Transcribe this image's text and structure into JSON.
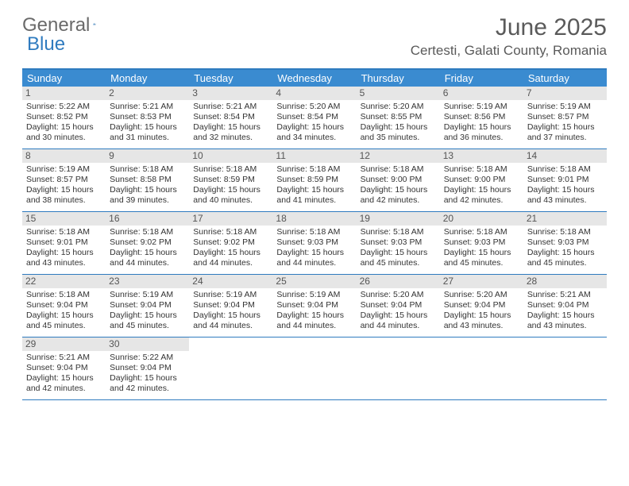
{
  "logo": {
    "text1": "General",
    "text2": "Blue"
  },
  "title": "June 2025",
  "location": "Certesti, Galati County, Romania",
  "colors": {
    "header_bar": "#3a8bd0",
    "border": "#2f7bbf",
    "daynum_bg": "#e6e6e6",
    "text": "#5a5a5a"
  },
  "dow": [
    "Sunday",
    "Monday",
    "Tuesday",
    "Wednesday",
    "Thursday",
    "Friday",
    "Saturday"
  ],
  "weeks": [
    [
      {
        "n": "1",
        "sr": "5:22 AM",
        "ss": "8:52 PM",
        "dl": "15 hours and 30 minutes."
      },
      {
        "n": "2",
        "sr": "5:21 AM",
        "ss": "8:53 PM",
        "dl": "15 hours and 31 minutes."
      },
      {
        "n": "3",
        "sr": "5:21 AM",
        "ss": "8:54 PM",
        "dl": "15 hours and 32 minutes."
      },
      {
        "n": "4",
        "sr": "5:20 AM",
        "ss": "8:54 PM",
        "dl": "15 hours and 34 minutes."
      },
      {
        "n": "5",
        "sr": "5:20 AM",
        "ss": "8:55 PM",
        "dl": "15 hours and 35 minutes."
      },
      {
        "n": "6",
        "sr": "5:19 AM",
        "ss": "8:56 PM",
        "dl": "15 hours and 36 minutes."
      },
      {
        "n": "7",
        "sr": "5:19 AM",
        "ss": "8:57 PM",
        "dl": "15 hours and 37 minutes."
      }
    ],
    [
      {
        "n": "8",
        "sr": "5:19 AM",
        "ss": "8:57 PM",
        "dl": "15 hours and 38 minutes."
      },
      {
        "n": "9",
        "sr": "5:18 AM",
        "ss": "8:58 PM",
        "dl": "15 hours and 39 minutes."
      },
      {
        "n": "10",
        "sr": "5:18 AM",
        "ss": "8:59 PM",
        "dl": "15 hours and 40 minutes."
      },
      {
        "n": "11",
        "sr": "5:18 AM",
        "ss": "8:59 PM",
        "dl": "15 hours and 41 minutes."
      },
      {
        "n": "12",
        "sr": "5:18 AM",
        "ss": "9:00 PM",
        "dl": "15 hours and 42 minutes."
      },
      {
        "n": "13",
        "sr": "5:18 AM",
        "ss": "9:00 PM",
        "dl": "15 hours and 42 minutes."
      },
      {
        "n": "14",
        "sr": "5:18 AM",
        "ss": "9:01 PM",
        "dl": "15 hours and 43 minutes."
      }
    ],
    [
      {
        "n": "15",
        "sr": "5:18 AM",
        "ss": "9:01 PM",
        "dl": "15 hours and 43 minutes."
      },
      {
        "n": "16",
        "sr": "5:18 AM",
        "ss": "9:02 PM",
        "dl": "15 hours and 44 minutes."
      },
      {
        "n": "17",
        "sr": "5:18 AM",
        "ss": "9:02 PM",
        "dl": "15 hours and 44 minutes."
      },
      {
        "n": "18",
        "sr": "5:18 AM",
        "ss": "9:03 PM",
        "dl": "15 hours and 44 minutes."
      },
      {
        "n": "19",
        "sr": "5:18 AM",
        "ss": "9:03 PM",
        "dl": "15 hours and 45 minutes."
      },
      {
        "n": "20",
        "sr": "5:18 AM",
        "ss": "9:03 PM",
        "dl": "15 hours and 45 minutes."
      },
      {
        "n": "21",
        "sr": "5:18 AM",
        "ss": "9:03 PM",
        "dl": "15 hours and 45 minutes."
      }
    ],
    [
      {
        "n": "22",
        "sr": "5:18 AM",
        "ss": "9:04 PM",
        "dl": "15 hours and 45 minutes."
      },
      {
        "n": "23",
        "sr": "5:19 AM",
        "ss": "9:04 PM",
        "dl": "15 hours and 45 minutes."
      },
      {
        "n": "24",
        "sr": "5:19 AM",
        "ss": "9:04 PM",
        "dl": "15 hours and 44 minutes."
      },
      {
        "n": "25",
        "sr": "5:19 AM",
        "ss": "9:04 PM",
        "dl": "15 hours and 44 minutes."
      },
      {
        "n": "26",
        "sr": "5:20 AM",
        "ss": "9:04 PM",
        "dl": "15 hours and 44 minutes."
      },
      {
        "n": "27",
        "sr": "5:20 AM",
        "ss": "9:04 PM",
        "dl": "15 hours and 43 minutes."
      },
      {
        "n": "28",
        "sr": "5:21 AM",
        "ss": "9:04 PM",
        "dl": "15 hours and 43 minutes."
      }
    ],
    [
      {
        "n": "29",
        "sr": "5:21 AM",
        "ss": "9:04 PM",
        "dl": "15 hours and 42 minutes."
      },
      {
        "n": "30",
        "sr": "5:22 AM",
        "ss": "9:04 PM",
        "dl": "15 hours and 42 minutes."
      },
      null,
      null,
      null,
      null,
      null
    ]
  ],
  "labels": {
    "sunrise": "Sunrise:",
    "sunset": "Sunset:",
    "daylight": "Daylight:"
  }
}
